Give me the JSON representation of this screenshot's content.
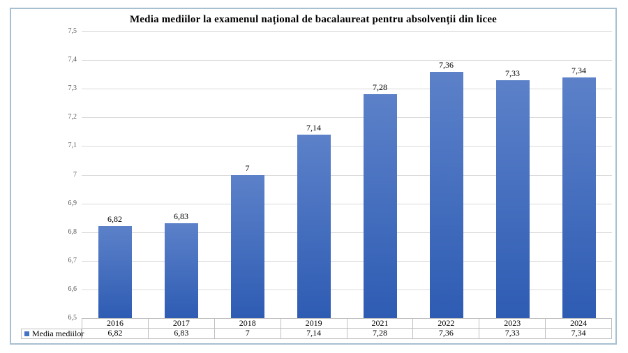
{
  "chart_data": {
    "type": "bar",
    "title": "Media mediilor la examenul național de bacalaureat pentru absolvenții din licee",
    "series_name": "Media mediilor",
    "categories": [
      "2016",
      "2017",
      "2018",
      "2019",
      "2021",
      "2022",
      "2023",
      "2024"
    ],
    "values": [
      6.82,
      6.83,
      7,
      7.14,
      7.28,
      7.36,
      7.33,
      7.34
    ],
    "value_labels": [
      "6,82",
      "6,83",
      "7",
      "7,14",
      "7,28",
      "7,36",
      "7,33",
      "7,34"
    ],
    "ylim": [
      6.5,
      7.5
    ],
    "ytick_labels": [
      "7,5",
      "7,4",
      "7,3",
      "7,2",
      "7,1",
      "7",
      "6,9",
      "6,8",
      "6,7",
      "6,6",
      "6,5"
    ],
    "grid": true,
    "data_table_shown": true,
    "legend": {
      "label": "Media mediilor",
      "position": "bottom-left",
      "key_color": "#4472c4"
    },
    "colors": {
      "bar_gradient_top": "#5c81c9",
      "bar_gradient_bottom": "#2e5cb3",
      "gridline": "#d9d9d9",
      "tick_text": "#595959",
      "table_border": "#bfbfbf",
      "frame_border": "#a7c0d1"
    }
  }
}
